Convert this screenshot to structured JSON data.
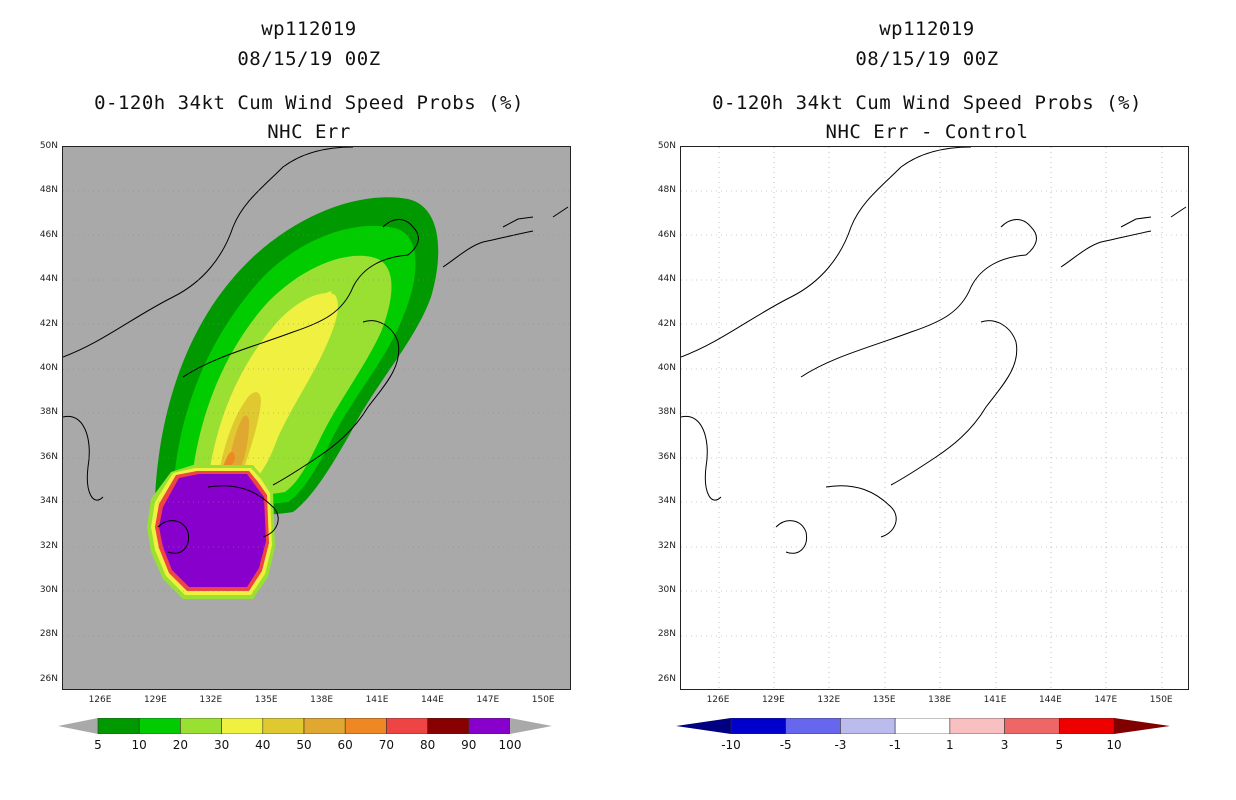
{
  "left_panel": {
    "title_line1": "wp112019",
    "title_line2": "08/15/19 00Z",
    "title_line3": "0-120h 34kt Cum Wind Speed Probs (%)",
    "title_line4": "NHC Err",
    "colorbar": {
      "colors": [
        "#009900",
        "#00cc00",
        "#99e033",
        "#f0f040",
        "#e0c830",
        "#e0a830",
        "#ee8822",
        "#ee4444",
        "#880000",
        "#8800cc"
      ],
      "labels": [
        "5",
        "10",
        "20",
        "30",
        "40",
        "50",
        "60",
        "70",
        "80",
        "90",
        "100"
      ]
    }
  },
  "right_panel": {
    "title_line1": "wp112019",
    "title_line2": "08/15/19 00Z",
    "title_line3": "0-120h 34kt Cum Wind Speed Probs (%)",
    "title_line4": "NHC Err - Control",
    "colorbar": {
      "colors": [
        "#0000cc",
        "#6666ee",
        "#bbbbee",
        "#ffffff",
        "#f8c0c0",
        "#ee6666",
        "#ee0000"
      ],
      "labels": [
        "-10",
        "-5",
        "-3",
        "-1",
        "1",
        "3",
        "5",
        "10"
      ]
    }
  },
  "axes": {
    "lat_labels": [
      "50N",
      "48N",
      "46N",
      "44N",
      "42N",
      "40N",
      "38N",
      "36N",
      "34N",
      "32N",
      "30N",
      "28N",
      "26N"
    ],
    "lon_labels": [
      "126E",
      "129E",
      "132E",
      "135E",
      "138E",
      "141E",
      "144E",
      "147E",
      "150E"
    ]
  },
  "map_colors": {
    "land_sea_gray": "#a9a9a9",
    "background_white": "#ffffff",
    "coast": "#000000"
  }
}
